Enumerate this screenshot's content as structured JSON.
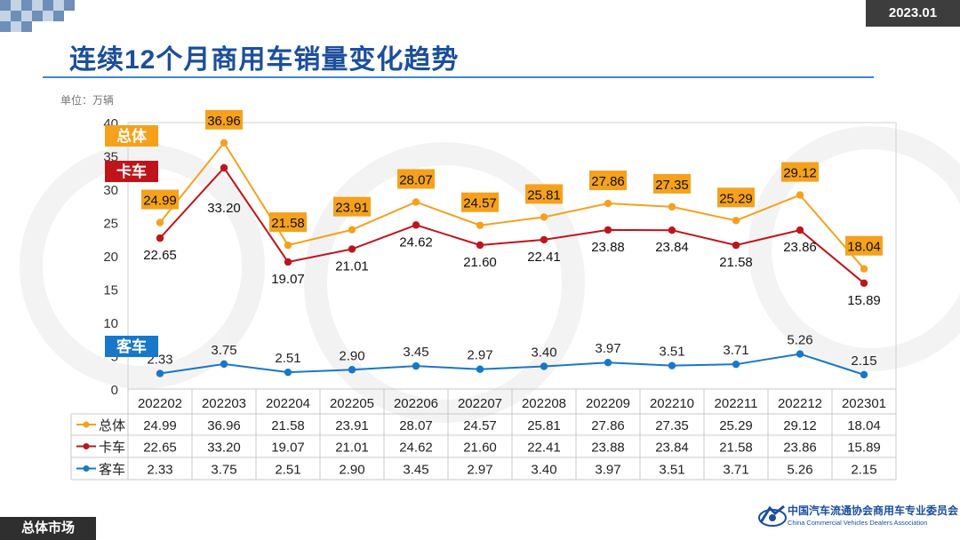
{
  "header": {
    "date": "2023.01",
    "title": "连续12个月商用车销量变化趋势",
    "unit": "单位：万辆"
  },
  "footer": {
    "section": "总体市场",
    "org_cn": "中国汽车流通协会商用车专业委员会",
    "org_en": "China Commercial Vehicles Dealers Association"
  },
  "colors": {
    "total": "#F5A11C",
    "truck": "#C0141B",
    "bus": "#1877C9",
    "title": "#1B4F9C"
  },
  "chart_data": {
    "type": "line",
    "title": "连续12个月商用车销量变化趋势",
    "ylabel": "单位：万辆",
    "ylim": [
      0,
      40
    ],
    "yticks": [
      0,
      5,
      10,
      15,
      20,
      25,
      30,
      35,
      40
    ],
    "categories": [
      "202202",
      "202203",
      "202204",
      "202205",
      "202206",
      "202207",
      "202208",
      "202209",
      "202210",
      "202211",
      "202212",
      "202301"
    ],
    "series": [
      {
        "key": "total",
        "name": "总体",
        "values": [
          24.99,
          36.96,
          21.58,
          23.91,
          28.07,
          24.57,
          25.81,
          27.86,
          27.35,
          25.29,
          29.12,
          18.04
        ],
        "labels": [
          "24.99",
          "36.96",
          "21.58",
          "23.91",
          "28.07",
          "24.57",
          "25.81",
          "27.86",
          "27.35",
          "25.29",
          "29.12",
          "18.04"
        ]
      },
      {
        "key": "truck",
        "name": "卡车",
        "values": [
          22.65,
          33.2,
          19.07,
          21.01,
          24.62,
          21.6,
          22.41,
          23.88,
          23.84,
          21.58,
          23.86,
          15.89
        ],
        "labels": [
          "22.65",
          "33.20",
          "19.07",
          "21.01",
          "24.62",
          "21.60",
          "22.41",
          "23.88",
          "23.84",
          "21.58",
          "23.86",
          "15.89"
        ]
      },
      {
        "key": "bus",
        "name": "客车",
        "values": [
          2.33,
          3.75,
          2.51,
          2.9,
          3.45,
          2.97,
          3.4,
          3.97,
          3.51,
          3.71,
          5.26,
          2.15
        ],
        "labels": [
          "2.33",
          "3.75",
          "2.51",
          "2.90",
          "3.45",
          "2.97",
          "3.40",
          "3.97",
          "3.51",
          "3.71",
          "5.26",
          "2.15"
        ]
      }
    ]
  }
}
